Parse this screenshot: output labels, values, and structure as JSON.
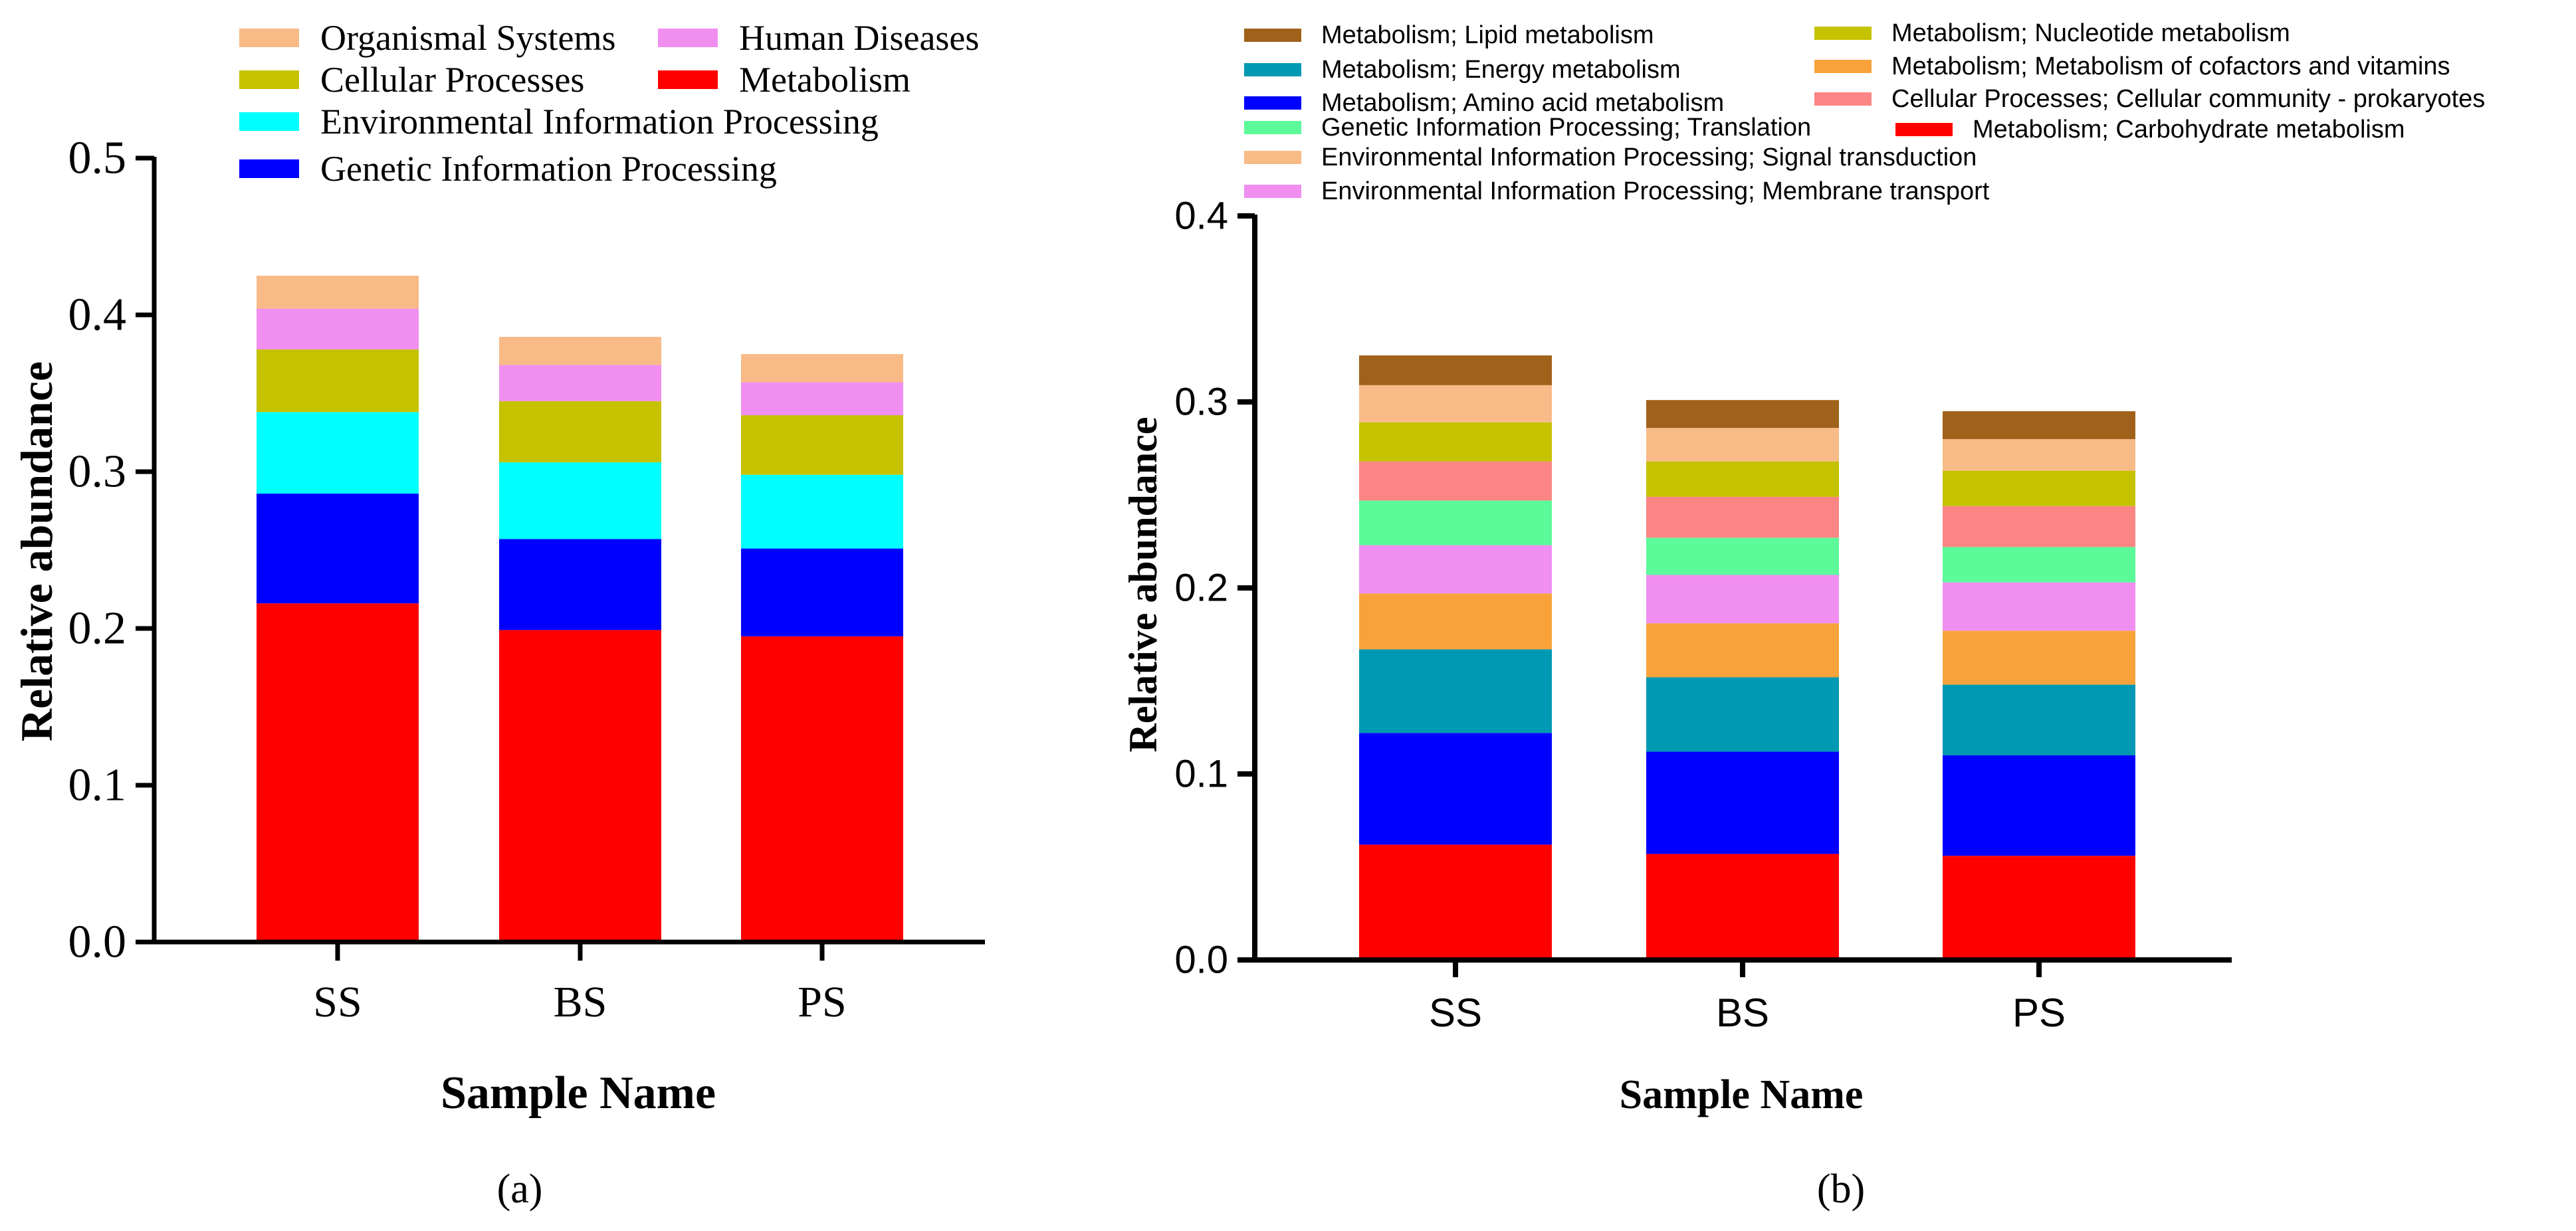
{
  "chart_data": [
    {
      "type": "bar",
      "stacked": true,
      "panel_label": "(a)",
      "title": "",
      "xlabel": "Sample Name",
      "ylabel": "Relative abundance",
      "categories": [
        "SS",
        "BS",
        "PS"
      ],
      "ylim": [
        0,
        0.5
      ],
      "yticks": [
        "0.0",
        "0.1",
        "0.2",
        "0.3",
        "0.4",
        "0.5"
      ],
      "series": [
        {
          "name": "Metabolism",
          "color": "#ff0000",
          "values": [
            0.216,
            0.199,
            0.195
          ]
        },
        {
          "name": "Genetic Information Processing",
          "color": "#0000ff",
          "values": [
            0.07,
            0.058,
            0.056
          ]
        },
        {
          "name": "Environmental Information Processing",
          "color": "#00ffff",
          "values": [
            0.052,
            0.049,
            0.047
          ]
        },
        {
          "name": "Cellular Processes",
          "color": "#c5c200",
          "values": [
            0.04,
            0.039,
            0.038
          ]
        },
        {
          "name": "Human Diseases",
          "color": "#f08ff0",
          "values": [
            0.026,
            0.023,
            0.021
          ]
        },
        {
          "name": "Organismal Systems",
          "color": "#f8bb88",
          "values": [
            0.021,
            0.018,
            0.018
          ]
        }
      ],
      "legend_order": [
        "Organismal Systems",
        "Human Diseases",
        "Cellular Processes",
        "Metabolism",
        "Environmental Information Processing",
        "Genetic Information Processing"
      ]
    },
    {
      "type": "bar",
      "stacked": true,
      "panel_label": "(b)",
      "title": "",
      "xlabel": "Sample Name",
      "ylabel": "Relative abundance",
      "categories": [
        "SS",
        "BS",
        "PS"
      ],
      "ylim": [
        0,
        0.4
      ],
      "yticks": [
        "0.0",
        "0.1",
        "0.2",
        "0.3",
        "0.4"
      ],
      "series": [
        {
          "name": "Metabolism; Carbohydrate metabolism",
          "color": "#ff0000",
          "values": [
            0.062,
            0.057,
            0.056
          ]
        },
        {
          "name": "Metabolism; Amino acid metabolism",
          "color": "#0000ff",
          "values": [
            0.06,
            0.055,
            0.054
          ]
        },
        {
          "name": "Metabolism; Energy metabolism",
          "color": "#0099b4",
          "values": [
            0.045,
            0.04,
            0.038
          ]
        },
        {
          "name": "Metabolism; Metabolism of cofactors and vitamins",
          "color": "#f8a33a",
          "values": [
            0.03,
            0.029,
            0.029
          ]
        },
        {
          "name": "Environmental Information Processing; Membrane transport",
          "color": "#f08ff0",
          "values": [
            0.026,
            0.026,
            0.026
          ]
        },
        {
          "name": "Genetic Information Processing; Translation",
          "color": "#5dfa9a",
          "values": [
            0.024,
            0.02,
            0.019
          ]
        },
        {
          "name": "Cellular Processes; Cellular community - prokaryotes",
          "color": "#fb8585",
          "values": [
            0.021,
            0.022,
            0.022
          ]
        },
        {
          "name": "Metabolism; Nucleotide metabolism",
          "color": "#c5c200",
          "values": [
            0.021,
            0.019,
            0.019
          ]
        },
        {
          "name": "Environmental Information Processing; Signal transduction",
          "color": "#f8bb88",
          "values": [
            0.02,
            0.018,
            0.017
          ]
        },
        {
          "name": "Metabolism; Lipid metabolism",
          "color": "#a0621a",
          "values": [
            0.016,
            0.015,
            0.015
          ]
        }
      ],
      "legend_order": [
        "Metabolism; Lipid metabolism",
        "Metabolism; Nucleotide metabolism",
        "Metabolism; Energy metabolism",
        "Metabolism; Metabolism of cofactors and vitamins",
        "Metabolism; Amino acid metabolism",
        "Cellular Processes; Cellular community - prokaryotes",
        "Genetic Information Processing; Translation",
        "Metabolism; Carbohydrate metabolism",
        "Environmental Information Processing; Signal transduction",
        "Environmental Information Processing; Membrane transport"
      ]
    }
  ]
}
